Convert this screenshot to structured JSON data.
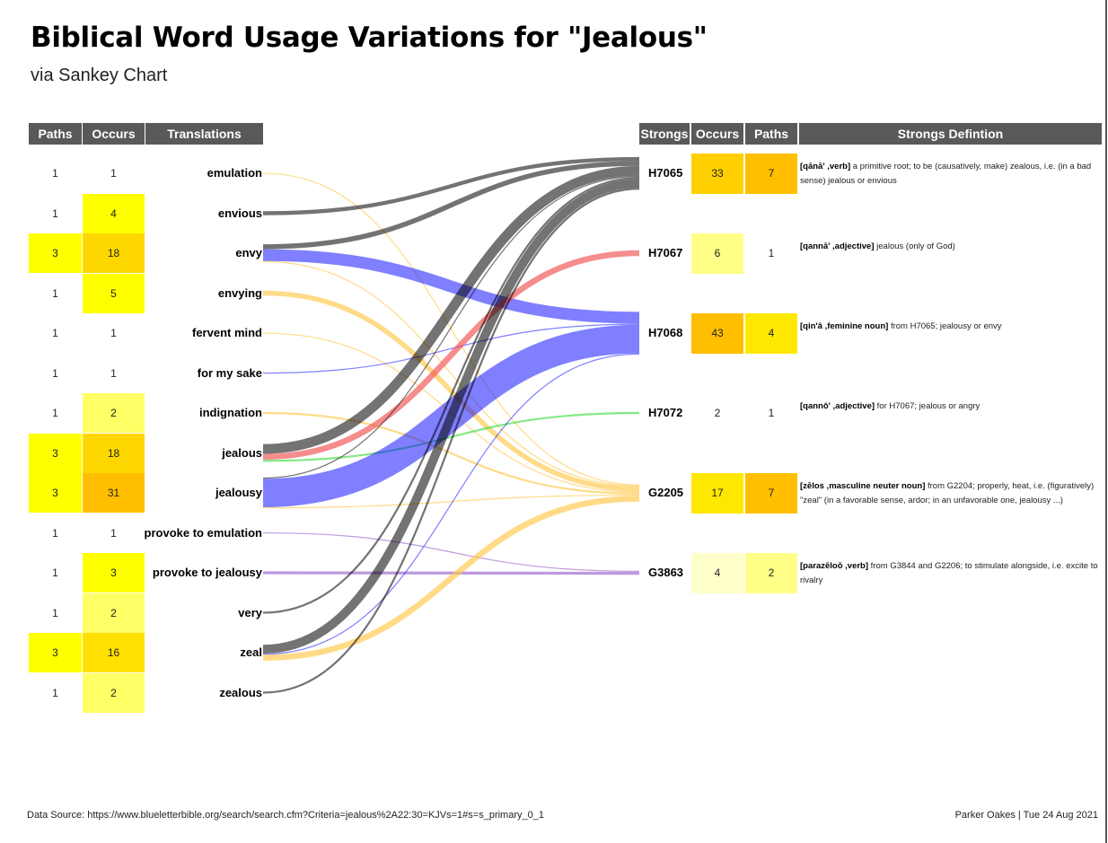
{
  "title": "Biblical Word Usage Variations for \"Jealous\"",
  "subtitle": "via Sankey Chart",
  "left_headers": {
    "paths": "Paths",
    "occurs": "Occurs",
    "translations": "Translations"
  },
  "right_headers": {
    "strongs": "Strongs",
    "occurs": "Occurs",
    "paths": "Paths",
    "definition": "Strongs Defintion"
  },
  "translations": [
    {
      "label": "emulation",
      "paths": "1",
      "occurs": "1",
      "paths_color": "#ffffff",
      "occurs_color": "#ffffff"
    },
    {
      "label": "envious",
      "paths": "1",
      "occurs": "4",
      "paths_color": "#ffffff",
      "occurs_color": "#ffff00"
    },
    {
      "label": "envy",
      "paths": "3",
      "occurs": "18",
      "paths_color": "#ffff00",
      "occurs_color": "#ffd700"
    },
    {
      "label": "envying",
      "paths": "1",
      "occurs": "5",
      "paths_color": "#ffffff",
      "occurs_color": "#ffff00"
    },
    {
      "label": "fervent mind",
      "paths": "1",
      "occurs": "1",
      "paths_color": "#ffffff",
      "occurs_color": "#ffffff"
    },
    {
      "label": "for my sake",
      "paths": "1",
      "occurs": "1",
      "paths_color": "#ffffff",
      "occurs_color": "#ffffff"
    },
    {
      "label": "indignation",
      "paths": "1",
      "occurs": "2",
      "paths_color": "#ffffff",
      "occurs_color": "#ffff66"
    },
    {
      "label": "jealous",
      "paths": "3",
      "occurs": "18",
      "paths_color": "#ffff00",
      "occurs_color": "#ffd700"
    },
    {
      "label": "jealousy",
      "paths": "3",
      "occurs": "31",
      "paths_color": "#ffff00",
      "occurs_color": "#ffbf00"
    },
    {
      "label": "provoke to emulation",
      "paths": "1",
      "occurs": "1",
      "paths_color": "#ffffff",
      "occurs_color": "#ffffff"
    },
    {
      "label": "provoke to jealousy",
      "paths": "1",
      "occurs": "3",
      "paths_color": "#ffffff",
      "occurs_color": "#ffff00"
    },
    {
      "label": "very",
      "paths": "1",
      "occurs": "2",
      "paths_color": "#ffffff",
      "occurs_color": "#ffff66"
    },
    {
      "label": "zeal",
      "paths": "3",
      "occurs": "16",
      "paths_color": "#ffff00",
      "occurs_color": "#ffe000"
    },
    {
      "label": "zealous",
      "paths": "1",
      "occurs": "2",
      "paths_color": "#ffffff",
      "occurs_color": "#ffff66"
    }
  ],
  "strongs": [
    {
      "code": "H7065",
      "occurs": "33",
      "paths": "7",
      "occurs_color": "#ffd000",
      "paths_color": "#ffbf00",
      "def_term": "[qānā' ,verb]",
      "def_text": " a primitive root; to be (causatively, make) zealous, i.e. (in a bad sense) jealous or envious",
      "color": "#000000"
    },
    {
      "code": "H7067",
      "occurs": "6",
      "paths": "1",
      "occurs_color": "#ffff88",
      "paths_color": "#ffffff",
      "def_term": "[qannā' ,adjective]",
      "def_text": " jealous (only of God)",
      "color": "#f05050"
    },
    {
      "code": "H7068",
      "occurs": "43",
      "paths": "4",
      "occurs_color": "#ffbf00",
      "paths_color": "#ffe800",
      "def_term": "[qin'â ,feminine noun]",
      "def_text": " from H7065; jealousy or envy",
      "color": "#0000ff"
    },
    {
      "code": "H7072",
      "occurs": "2",
      "paths": "1",
      "occurs_color": "#ffffff",
      "paths_color": "#ffffff",
      "def_term": "[qannô' ,adjective]",
      "def_text": " for H7067; jealous or angry",
      "color": "#44dd44"
    },
    {
      "code": "G2205",
      "occurs": "17",
      "paths": "7",
      "occurs_color": "#ffe800",
      "paths_color": "#ffbf00",
      "def_term": "[zēlos ,masculine neuter noun]",
      "def_text": " from G2204; properly, heat, i.e. (figuratively) \"zeal\" (in a favorable sense, ardor; in an unfavorable one, jealousy ...)",
      "color": "#ffc848"
    },
    {
      "code": "G3863",
      "occurs": "4",
      "paths": "2",
      "occurs_color": "#ffffcc",
      "paths_color": "#ffff88",
      "def_term": "[parazēloō ,verb]",
      "def_text": " from G3844 and G2206; to stimulate alongside, i.e. excite to rivalry",
      "color": "#9966cc"
    }
  ],
  "links": [
    {
      "source": "emulation",
      "target": "G2205",
      "value": 1
    },
    {
      "source": "envious",
      "target": "H7065",
      "value": 4
    },
    {
      "source": "envy",
      "target": "H7065",
      "value": 5
    },
    {
      "source": "envy",
      "target": "H7068",
      "value": 12
    },
    {
      "source": "envy",
      "target": "G2205",
      "value": 1
    },
    {
      "source": "envying",
      "target": "G2205",
      "value": 5
    },
    {
      "source": "fervent mind",
      "target": "G2205",
      "value": 1
    },
    {
      "source": "for my sake",
      "target": "H7068",
      "value": 1
    },
    {
      "source": "indignation",
      "target": "G2205",
      "value": 2
    },
    {
      "source": "jealous",
      "target": "H7065",
      "value": 10
    },
    {
      "source": "jealous",
      "target": "H7067",
      "value": 6
    },
    {
      "source": "jealous",
      "target": "H7072",
      "value": 2
    },
    {
      "source": "jealousy",
      "target": "H7065",
      "value": 1
    },
    {
      "source": "jealousy",
      "target": "H7068",
      "value": 29
    },
    {
      "source": "jealousy",
      "target": "G2205",
      "value": 1
    },
    {
      "source": "provoke to emulation",
      "target": "G3863",
      "value": 1
    },
    {
      "source": "provoke to jealousy",
      "target": "G3863",
      "value": 3
    },
    {
      "source": "very",
      "target": "H7065",
      "value": 2
    },
    {
      "source": "zeal",
      "target": "H7065",
      "value": 9
    },
    {
      "source": "zeal",
      "target": "H7068",
      "value": 1
    },
    {
      "source": "zeal",
      "target": "G2205",
      "value": 6
    },
    {
      "source": "zealous",
      "target": "H7065",
      "value": 2
    }
  ],
  "footer": {
    "source": "Data Source: https://www.blueletterbible.org/search/search.cfm?Criteria=jealous%2A22:30=KJVs=1#s=s_primary_0_1",
    "credit": "Parker Oakes | Tue 24 Aug 2021"
  }
}
